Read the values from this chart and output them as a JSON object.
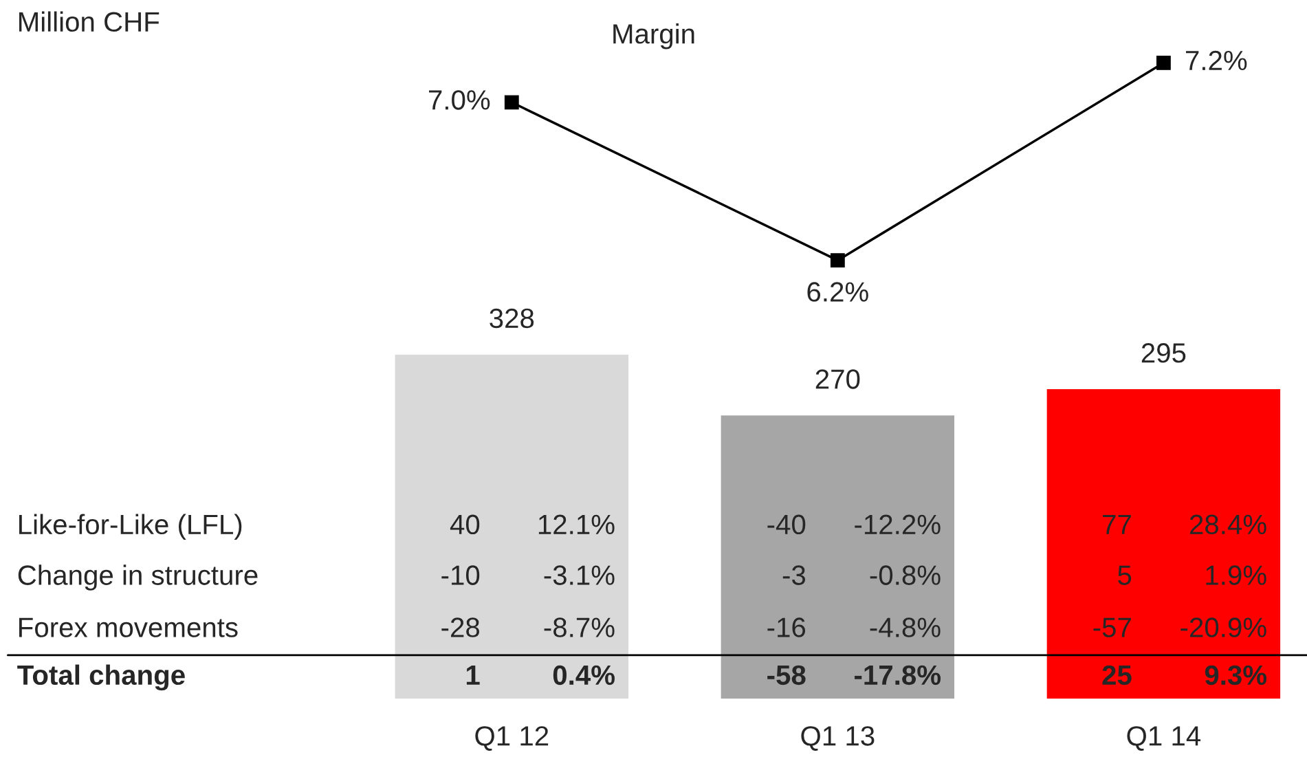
{
  "chart_data": [
    {
      "type": "line",
      "title": "Margin",
      "categories": [
        null,
        null,
        null
      ],
      "data_labels": true,
      "marker": "square",
      "grid": false,
      "legend": false,
      "series": [
        {
          "color": "#000000",
          "values": [
            7.0,
            6.2,
            7.2
          ],
          "value_labels": [
            "7.0%",
            "6.2%",
            "7.2%"
          ]
        }
      ]
    },
    {
      "type": "bar",
      "categories": [
        "Q1 12",
        "Q1 13",
        "Q1 14"
      ],
      "data_labels": true,
      "grid": false,
      "legend": false,
      "series": [
        {
          "colors": [
            "#d9d9d9",
            "#a6a6a6",
            "#ff0000"
          ],
          "values": [
            328,
            270,
            295
          ]
        }
      ],
      "annotations": [
        "Million CHF",
        "Like-for-Like (LFL)",
        "40",
        "12.1%",
        "-40",
        "-12.2%",
        "77",
        "28.4%",
        "Change in structure",
        "-10",
        "-3.1%",
        "-3",
        "-0.8%",
        "5",
        "1.9%",
        "Forex movements",
        "-28",
        "-8.7%",
        "-16",
        "-4.8%",
        "-57",
        "-20.9%",
        "Total change",
        "1",
        "0.4%",
        "-58",
        "-17.8%",
        "25",
        "9.3%"
      ]
    }
  ]
}
